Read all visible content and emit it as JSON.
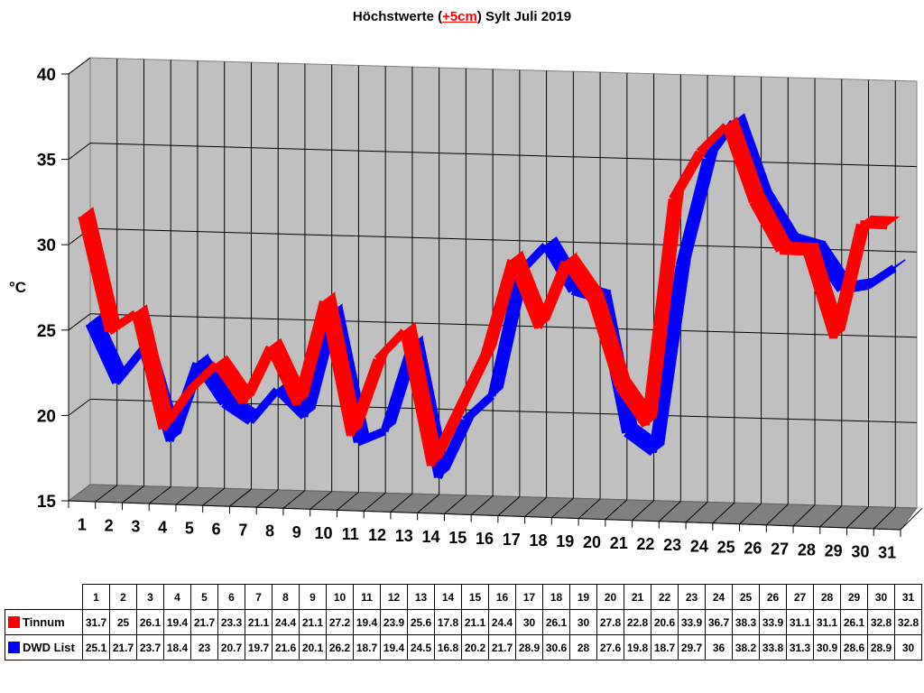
{
  "title": {
    "prefix": "Höchstwerte (",
    "highlight": "+5cm",
    "suffix": ") Sylt Juli 2019"
  },
  "colors": {
    "series_tinnum": "#ff0000",
    "series_dwd": "#0000ff",
    "wall": "#c0c0c0",
    "floor": "#808080",
    "highlight_text": "#ff0000"
  },
  "chart_data": {
    "type": "line",
    "style": "3d-ribbon",
    "title": "Höchstwerte (+5cm) Sylt Juli 2019",
    "xlabel": "",
    "ylabel": "°C",
    "ylim": [
      15,
      40
    ],
    "yticks": [
      15,
      20,
      25,
      30,
      35,
      40
    ],
    "grid": true,
    "legend_position": "data-table-below",
    "categories": [
      "1",
      "2",
      "3",
      "4",
      "5",
      "6",
      "7",
      "8",
      "9",
      "10",
      "11",
      "12",
      "13",
      "14",
      "15",
      "16",
      "17",
      "18",
      "19",
      "20",
      "21",
      "22",
      "23",
      "24",
      "25",
      "26",
      "27",
      "28",
      "29",
      "30",
      "31"
    ],
    "series": [
      {
        "name": "Tinnum",
        "color": "#ff0000",
        "values": [
          31.7,
          25,
          26.1,
          19.4,
          21.7,
          23.3,
          21.1,
          24.4,
          21.1,
          27.2,
          19.4,
          23.9,
          25.6,
          17.8,
          21.1,
          24.4,
          30,
          26.1,
          30,
          27.8,
          22.8,
          20.6,
          33.9,
          36.7,
          38.3,
          33.9,
          31.1,
          31.1,
          26.1,
          32.8,
          32.8
        ]
      },
      {
        "name": "DWD List",
        "color": "#0000ff",
        "values": [
          25.1,
          21.7,
          23.7,
          18.4,
          23,
          20.7,
          19.7,
          21.6,
          20.1,
          26.2,
          18.7,
          19.4,
          24.5,
          16.8,
          20.2,
          21.7,
          28.9,
          30.6,
          28,
          27.6,
          19.8,
          18.7,
          29.7,
          36,
          38.2,
          33.8,
          31.3,
          30.9,
          28.6,
          28.9,
          30
        ]
      }
    ]
  },
  "table": {
    "rows": [
      {
        "label": "Tinnum"
      },
      {
        "label": "DWD List"
      }
    ]
  }
}
